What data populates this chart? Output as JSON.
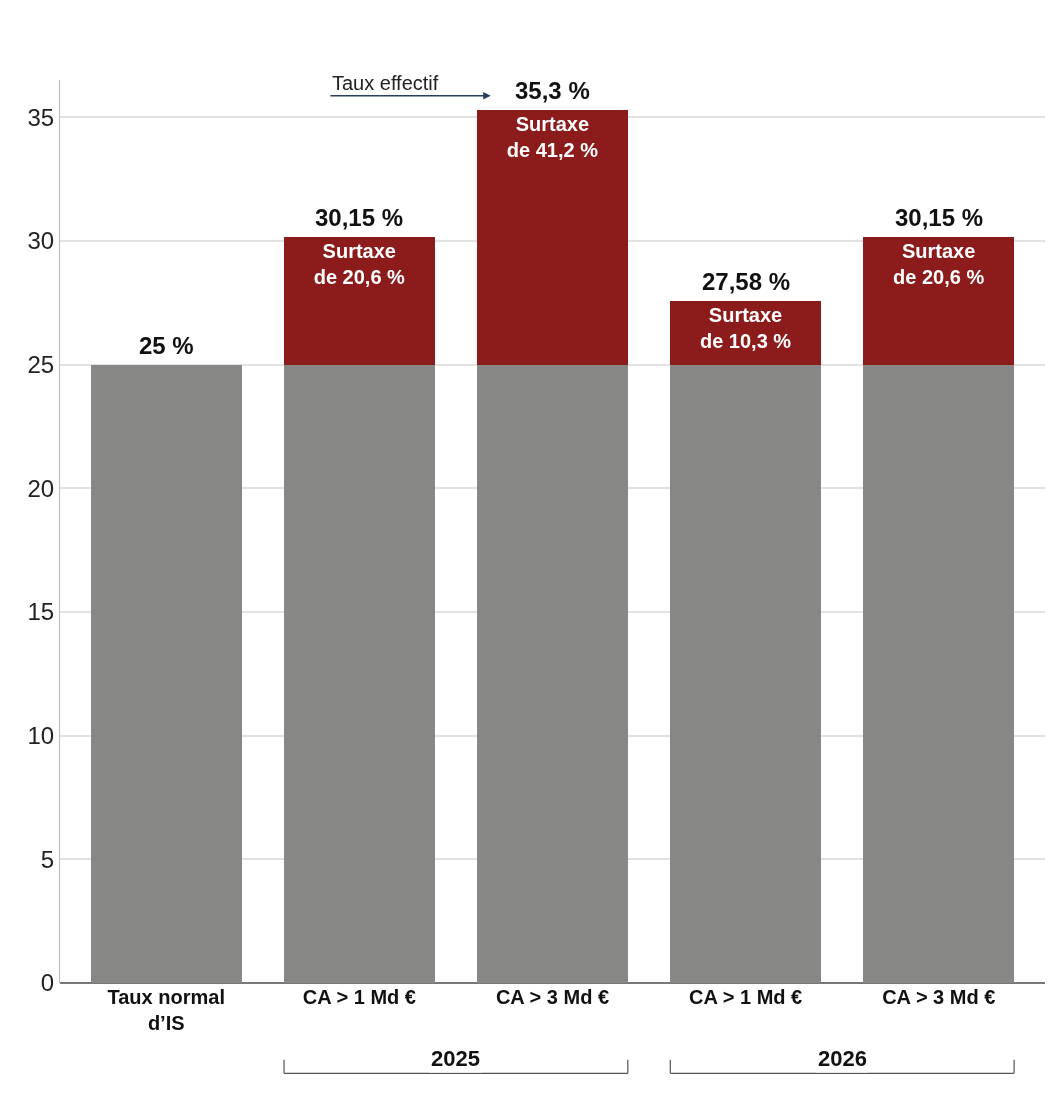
{
  "chart_data": {
    "type": "bar",
    "stacked": true,
    "categories": [
      "Taux normal\nd’IS",
      "CA > 1 Md €",
      "CA > 3 Md €",
      "CA > 1 Md €",
      "CA > 3 Md €"
    ],
    "series": [
      {
        "color": "#878785",
        "values": [
          25,
          25,
          25,
          25,
          25
        ]
      },
      {
        "color": "#8c1c1c",
        "values": [
          null,
          5.15,
          10.3,
          2.58,
          5.15
        ],
        "value_labels": [
          null,
          "Surtaxe\nde 20,6 %",
          "Surtaxe\nde 41,2 %",
          "Surtaxe\nde 10,3 %",
          "Surtaxe\nde 20,6 %"
        ]
      }
    ],
    "totals": [
      "25 %",
      "30,15 %",
      "35,3 %",
      "27,58 %",
      "30,15 %"
    ],
    "ylim": [
      0,
      36.5
    ],
    "yticks": [
      0,
      5,
      10,
      15,
      20,
      25,
      30,
      35
    ],
    "grid": "y",
    "legend": false,
    "annotations": [
      "Taux effectif",
      "2025",
      "2026"
    ]
  }
}
